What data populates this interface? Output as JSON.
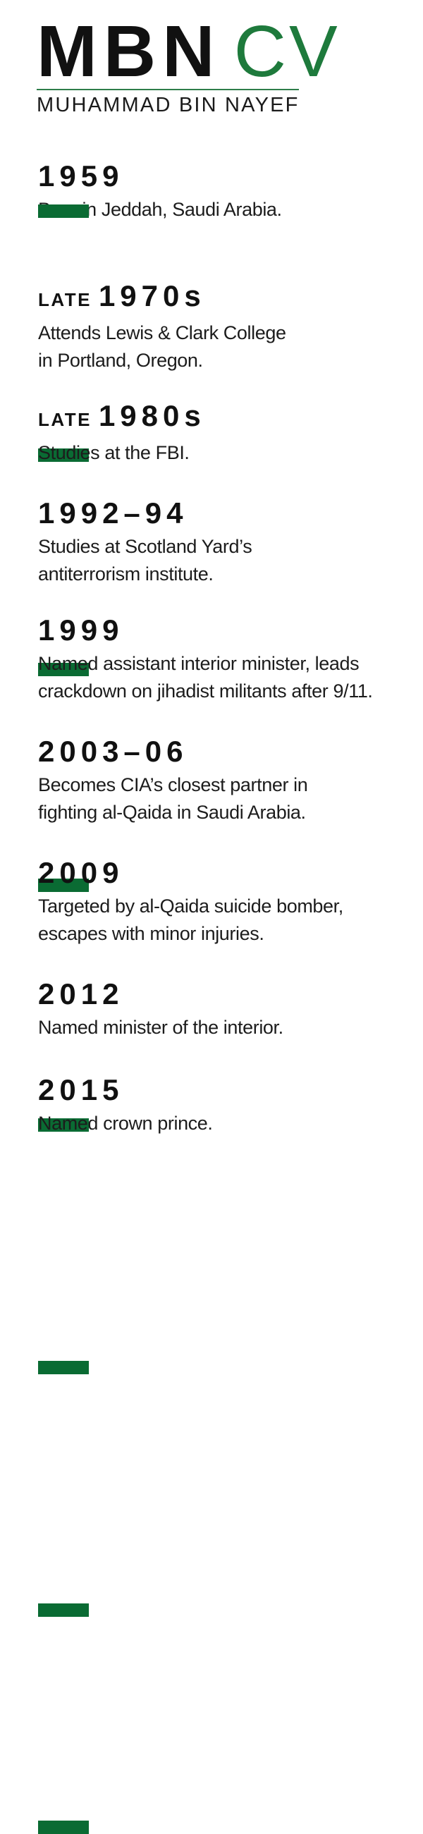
{
  "header": {
    "title_bold": "MBN",
    "title_light": "CV",
    "subtitle": "MUHAMMAD BIN NAYEF"
  },
  "timeline": [
    {
      "prefix": "",
      "year": "1959",
      "lines": [
        "Born in Jeddah, Saudi Arabia."
      ]
    },
    {
      "prefix": "LATE",
      "year": "1970s",
      "lines": [
        "Attends Lewis & Clark College",
        "in Portland, Oregon."
      ]
    },
    {
      "prefix": "LATE",
      "year": "1980s",
      "lines": [
        "Studies at the FBI."
      ]
    },
    {
      "prefix": "",
      "year": "1992–94",
      "lines": [
        "Studies at Scotland Yard’s",
        "antiterrorism institute."
      ]
    },
    {
      "prefix": "",
      "year": "1999",
      "lines": [
        "Named assistant interior minister, leads",
        "crackdown on jihadist militants after 9/11."
      ]
    },
    {
      "prefix": "",
      "year": "2003–06",
      "lines": [
        "Becomes CIA’s closest partner in",
        "fighting al-Qaida in Saudi Arabia."
      ]
    },
    {
      "prefix": "",
      "year": "2009",
      "lines": [
        "Targeted by al-Qaida suicide bomber,",
        "escapes with minor injuries."
      ]
    },
    {
      "prefix": "",
      "year": "2012",
      "lines": [
        "Named minister of the interior."
      ]
    },
    {
      "prefix": "",
      "year": "2015",
      "lines": [
        "Named crown prince."
      ]
    }
  ],
  "colors": {
    "accent_green": "#0a6b33",
    "title_green": "#1e7a3c",
    "text": "#111111"
  }
}
